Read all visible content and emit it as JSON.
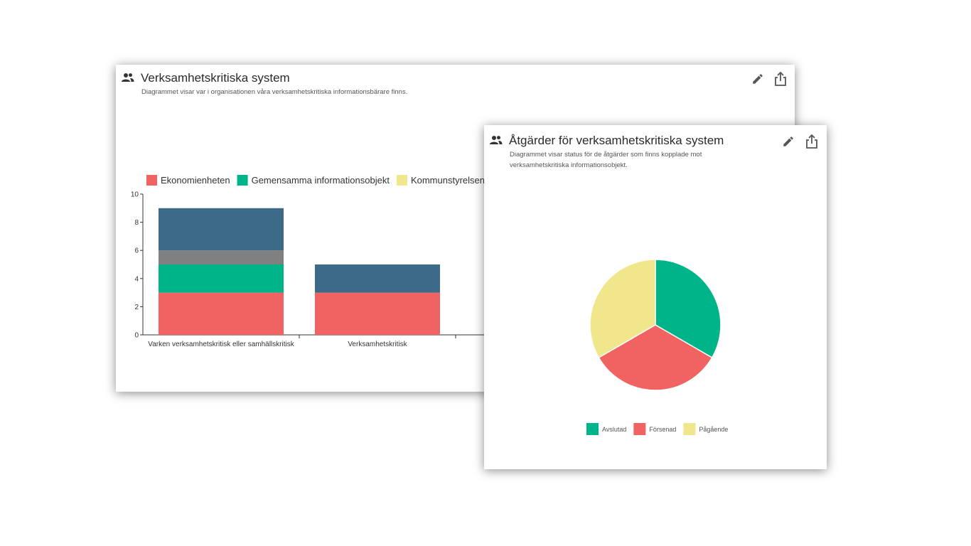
{
  "icons": {
    "group": "group-icon",
    "edit": "pencil-icon",
    "share": "share-icon"
  },
  "card1": {
    "title": "Verksamhetskritiska system",
    "description": "Diagrammet visar var i organisationen våra verksamhetskritiska informationsbärare finns."
  },
  "card2": {
    "title": "Åtgärder för verksamhetskritiska system",
    "description": "Diagrammet visar status för de åtgärder som finns kopplade mot verksamhetskritiska informationsobjekt."
  },
  "chart_data": [
    {
      "type": "bar",
      "stacked": true,
      "categories": [
        "Varken verksamhetskritisk eller samhällskritisk",
        "Verksamhetskritisk"
      ],
      "series": [
        {
          "name": "Ekonomienheten",
          "color": "#f16262",
          "values": [
            3,
            3
          ]
        },
        {
          "name": "Gemensamma informationsobjekt",
          "color": "#00b48a",
          "values": [
            2,
            0
          ]
        },
        {
          "name": "Kommunstyrelsen",
          "color": "#f0e68c",
          "values": [
            0,
            0
          ]
        },
        {
          "color": "#808080",
          "values": [
            1,
            0
          ]
        },
        {
          "color": "#3e6a8a",
          "values": [
            3,
            2
          ]
        }
      ],
      "ylim": [
        0,
        10
      ],
      "yticks": [
        0,
        2,
        4,
        6,
        8,
        10
      ],
      "legend": "top-left",
      "grid": false
    },
    {
      "type": "pie",
      "labels": [
        "Avslutad",
        "Försenad",
        "Pågående"
      ],
      "values": [
        1,
        1,
        1
      ],
      "colors": [
        "#00b48a",
        "#f16262",
        "#f0e68c"
      ],
      "legend": "bottom"
    }
  ]
}
